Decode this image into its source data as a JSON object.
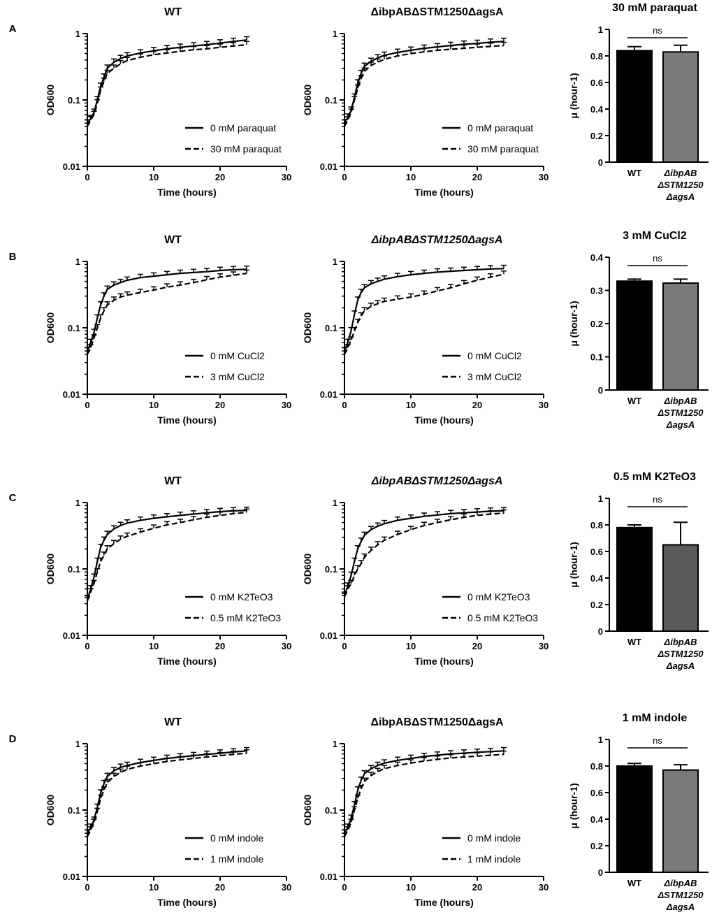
{
  "figure": {
    "panels": [
      {
        "letter": "A",
        "condition_label": "30 mM paraquat",
        "legend": [
          "0 mM paraquat",
          "30 mM paraquat"
        ],
        "bar_title": "30 mM paraquat"
      },
      {
        "letter": "B",
        "condition_label": "3 mM CuCl2",
        "legend": [
          "0 mM CuCl2",
          "3 mM CuCl2"
        ],
        "bar_title": "3 mM CuCl2"
      },
      {
        "letter": "C",
        "condition_label": "0.5 mM K2TeO3",
        "legend": [
          "0 mM K2TeO3",
          "0.5 mM K2TeO3"
        ],
        "bar_title": "0.5 mM K2TeO3"
      },
      {
        "letter": "D",
        "condition_label": "1 mM indole",
        "legend": [
          "0 mM indole",
          "1 mM indole"
        ],
        "bar_title": "1 mM indole"
      }
    ],
    "strain_titles_rows": [
      [
        "WT",
        "ΔibpABΔSTM1250ΔagsA"
      ],
      [
        "WT",
        "ΔibpABΔSTM1250ΔagsA"
      ],
      [
        "WT",
        "ΔibpABΔSTM1250ΔagsA"
      ],
      [
        "WT",
        "ΔibpABΔSTM1250ΔagsA"
      ]
    ],
    "growth_axis": {
      "xlabel": "Time (hours)",
      "ylabel": "OD600",
      "xticks": [
        "0",
        "10",
        "20",
        "30"
      ],
      "yticks": [
        "1",
        "0.1",
        "0.01"
      ]
    },
    "bar_axis": {
      "ylabel": "μ (hour-1)",
      "categories": [
        "WT",
        "ΔibpAB",
        "ΔSTM1250",
        "ΔagsA"
      ],
      "ns_label": "ns"
    }
  },
  "chart_data": [
    {
      "type": "line",
      "panel": "A",
      "title": "WT",
      "yscale": "log",
      "xlim": [
        0,
        30
      ],
      "ylim": [
        0.01,
        1
      ],
      "xlabel": "Time (hours)",
      "ylabel": "OD600",
      "series": [
        {
          "name": "0 mM paraquat",
          "style": "solid",
          "x": [
            0,
            0.5,
            1,
            1.5,
            2,
            2.5,
            3,
            4,
            5,
            6,
            8,
            10,
            12,
            14,
            16,
            18,
            20,
            22,
            24
          ],
          "y": [
            0.045,
            0.052,
            0.065,
            0.1,
            0.16,
            0.22,
            0.3,
            0.37,
            0.42,
            0.46,
            0.51,
            0.55,
            0.59,
            0.62,
            0.65,
            0.68,
            0.72,
            0.76,
            0.8
          ]
        },
        {
          "name": "30 mM paraquat",
          "style": "dashed",
          "x": [
            0,
            0.5,
            1,
            1.5,
            2,
            2.5,
            3,
            4,
            5,
            6,
            8,
            10,
            12,
            14,
            16,
            18,
            20,
            22,
            24
          ],
          "y": [
            0.04,
            0.05,
            0.06,
            0.09,
            0.14,
            0.19,
            0.25,
            0.3,
            0.35,
            0.39,
            0.44,
            0.48,
            0.51,
            0.54,
            0.57,
            0.59,
            0.62,
            0.65,
            0.68
          ]
        }
      ]
    },
    {
      "type": "line",
      "panel": "A",
      "title": "ΔibpABΔSTM1250ΔagsA",
      "yscale": "log",
      "xlim": [
        0,
        30
      ],
      "ylim": [
        0.01,
        1
      ],
      "xlabel": "Time (hours)",
      "ylabel": "OD600",
      "series": [
        {
          "name": "0 mM paraquat",
          "style": "solid",
          "x": [
            0,
            0.5,
            1,
            1.5,
            2,
            2.5,
            3,
            4,
            5,
            6,
            8,
            10,
            12,
            14,
            16,
            18,
            20,
            22,
            24
          ],
          "y": [
            0.045,
            0.055,
            0.07,
            0.11,
            0.18,
            0.25,
            0.32,
            0.38,
            0.43,
            0.47,
            0.52,
            0.56,
            0.6,
            0.63,
            0.66,
            0.69,
            0.71,
            0.74,
            0.76
          ]
        },
        {
          "name": "30 mM paraquat",
          "style": "dashed",
          "x": [
            0,
            0.5,
            1,
            1.5,
            2,
            2.5,
            3,
            4,
            5,
            6,
            8,
            10,
            12,
            14,
            16,
            18,
            20,
            22,
            24
          ],
          "y": [
            0.04,
            0.05,
            0.065,
            0.1,
            0.15,
            0.21,
            0.27,
            0.33,
            0.37,
            0.41,
            0.46,
            0.5,
            0.53,
            0.56,
            0.58,
            0.6,
            0.62,
            0.64,
            0.66
          ]
        }
      ]
    },
    {
      "type": "bar",
      "panel": "A",
      "title": "30 mM paraquat",
      "ylabel": "μ (hour-1)",
      "categories": [
        "WT",
        "ΔibpABΔSTM1250ΔagsA"
      ],
      "values": [
        0.84,
        0.83
      ],
      "errors": [
        0.03,
        0.05
      ],
      "fills": [
        "#000000",
        "#7a7a7a"
      ],
      "ylim": [
        0,
        1.0
      ],
      "yticks": [
        0,
        0.2,
        0.4,
        0.6,
        0.8,
        1.0
      ],
      "annotation": "ns"
    },
    {
      "type": "line",
      "panel": "B",
      "title": "WT",
      "yscale": "log",
      "xlim": [
        0,
        30
      ],
      "ylim": [
        0.01,
        1
      ],
      "xlabel": "Time (hours)",
      "ylabel": "OD600",
      "series": [
        {
          "name": "0 mM CuCl2",
          "style": "solid",
          "x": [
            0,
            0.5,
            1,
            1.5,
            2,
            2.5,
            3,
            4,
            5,
            6,
            8,
            10,
            12,
            14,
            16,
            18,
            20,
            22,
            24
          ],
          "y": [
            0.045,
            0.06,
            0.085,
            0.14,
            0.22,
            0.3,
            0.38,
            0.44,
            0.48,
            0.52,
            0.57,
            0.6,
            0.63,
            0.66,
            0.68,
            0.7,
            0.73,
            0.75,
            0.76
          ]
        },
        {
          "name": "3 mM CuCl2",
          "style": "dashed",
          "x": [
            0,
            0.5,
            1,
            1.5,
            2,
            2.5,
            3,
            4,
            5,
            6,
            8,
            10,
            12,
            14,
            16,
            18,
            20,
            22,
            24
          ],
          "y": [
            0.04,
            0.05,
            0.07,
            0.1,
            0.14,
            0.18,
            0.22,
            0.26,
            0.29,
            0.31,
            0.34,
            0.37,
            0.41,
            0.44,
            0.48,
            0.53,
            0.58,
            0.62,
            0.66
          ]
        }
      ]
    },
    {
      "type": "line",
      "panel": "B",
      "title": "ΔibpABΔSTM1250ΔagsA",
      "yscale": "log",
      "xlim": [
        0,
        30
      ],
      "ylim": [
        0.01,
        1
      ],
      "xlabel": "Time (hours)",
      "ylabel": "OD600",
      "series": [
        {
          "name": "0 mM CuCl2",
          "style": "solid",
          "x": [
            0,
            0.5,
            1,
            1.5,
            2,
            2.5,
            3,
            4,
            5,
            6,
            8,
            10,
            12,
            14,
            16,
            18,
            20,
            22,
            24
          ],
          "y": [
            0.045,
            0.06,
            0.09,
            0.16,
            0.26,
            0.34,
            0.4,
            0.46,
            0.5,
            0.54,
            0.59,
            0.63,
            0.66,
            0.69,
            0.71,
            0.73,
            0.75,
            0.77,
            0.78
          ]
        },
        {
          "name": "3 mM CuCl2",
          "style": "dashed",
          "x": [
            0,
            0.5,
            1,
            1.5,
            2,
            2.5,
            3,
            4,
            5,
            6,
            8,
            10,
            12,
            14,
            16,
            18,
            20,
            22,
            24
          ],
          "y": [
            0.04,
            0.05,
            0.065,
            0.09,
            0.12,
            0.15,
            0.18,
            0.21,
            0.23,
            0.25,
            0.27,
            0.29,
            0.32,
            0.36,
            0.4,
            0.46,
            0.52,
            0.58,
            0.64
          ]
        }
      ]
    },
    {
      "type": "bar",
      "panel": "B",
      "title": "3 mM CuCl2",
      "ylabel": "μ (hour-1)",
      "categories": [
        "WT",
        "ΔibpABΔSTM1250ΔagsA"
      ],
      "values": [
        0.328,
        0.322
      ],
      "errors": [
        0.006,
        0.012
      ],
      "fills": [
        "#000000",
        "#7a7a7a"
      ],
      "ylim": [
        0,
        0.4
      ],
      "yticks": [
        0,
        0.1,
        0.2,
        0.3,
        0.4
      ],
      "annotation": "ns"
    },
    {
      "type": "line",
      "panel": "C",
      "title": "WT",
      "yscale": "log",
      "xlim": [
        0,
        30
      ],
      "ylim": [
        0.01,
        1
      ],
      "xlabel": "Time (hours)",
      "ylabel": "OD600",
      "series": [
        {
          "name": "0 mM K2TeO3",
          "style": "solid",
          "x": [
            0,
            0.5,
            1,
            1.5,
            2,
            2.5,
            3,
            4,
            5,
            6,
            8,
            10,
            12,
            14,
            16,
            18,
            20,
            22,
            24
          ],
          "y": [
            0.035,
            0.05,
            0.075,
            0.13,
            0.21,
            0.27,
            0.33,
            0.4,
            0.45,
            0.49,
            0.54,
            0.58,
            0.61,
            0.64,
            0.67,
            0.7,
            0.73,
            0.75,
            0.76
          ]
        },
        {
          "name": "0.5 mM K2TeO3",
          "style": "dashed",
          "x": [
            0,
            0.5,
            1,
            1.5,
            2,
            2.5,
            3,
            4,
            5,
            6,
            8,
            10,
            12,
            14,
            16,
            18,
            20,
            22,
            24
          ],
          "y": [
            0.033,
            0.045,
            0.06,
            0.09,
            0.13,
            0.16,
            0.2,
            0.24,
            0.28,
            0.31,
            0.36,
            0.41,
            0.46,
            0.5,
            0.55,
            0.6,
            0.64,
            0.68,
            0.71
          ]
        }
      ]
    },
    {
      "type": "line",
      "panel": "C",
      "title": "ΔibpABΔSTM1250ΔagsA",
      "yscale": "log",
      "xlim": [
        0,
        30
      ],
      "ylim": [
        0.01,
        1
      ],
      "xlabel": "Time (hours)",
      "ylabel": "OD600",
      "series": [
        {
          "name": "0 mM K2TeO3",
          "style": "solid",
          "x": [
            0,
            0.5,
            1,
            1.5,
            2,
            2.5,
            3,
            4,
            5,
            6,
            8,
            10,
            12,
            14,
            16,
            18,
            20,
            22,
            24
          ],
          "y": [
            0.04,
            0.055,
            0.08,
            0.13,
            0.2,
            0.26,
            0.32,
            0.39,
            0.44,
            0.48,
            0.54,
            0.58,
            0.62,
            0.65,
            0.68,
            0.7,
            0.72,
            0.74,
            0.75
          ]
        },
        {
          "name": "0.5 mM K2TeO3",
          "style": "dashed",
          "x": [
            0,
            0.5,
            1,
            1.5,
            2,
            2.5,
            3,
            4,
            5,
            6,
            8,
            10,
            12,
            14,
            16,
            18,
            20,
            22,
            24
          ],
          "y": [
            0.038,
            0.05,
            0.06,
            0.08,
            0.1,
            0.12,
            0.15,
            0.19,
            0.23,
            0.27,
            0.33,
            0.39,
            0.45,
            0.5,
            0.55,
            0.6,
            0.64,
            0.67,
            0.69
          ]
        }
      ]
    },
    {
      "type": "bar",
      "panel": "C",
      "title": "0.5 mM K2TeO3",
      "ylabel": "μ (hour-1)",
      "categories": [
        "WT",
        "ΔibpABΔSTM1250ΔagsA"
      ],
      "values": [
        0.78,
        0.65
      ],
      "errors": [
        0.02,
        0.17
      ],
      "fills": [
        "#000000",
        "#5a5a5a"
      ],
      "ylim": [
        0,
        1.0
      ],
      "yticks": [
        0,
        0.2,
        0.4,
        0.6,
        0.8,
        1.0
      ],
      "annotation": "ns"
    },
    {
      "type": "line",
      "panel": "D",
      "title": "WT",
      "yscale": "log",
      "xlim": [
        0,
        30
      ],
      "ylim": [
        0.01,
        1
      ],
      "xlabel": "Time (hours)",
      "ylabel": "OD600",
      "series": [
        {
          "name": "0 mM indole",
          "style": "solid",
          "x": [
            0,
            0.5,
            1,
            1.5,
            2,
            2.5,
            3,
            4,
            5,
            6,
            8,
            10,
            12,
            14,
            16,
            18,
            20,
            22,
            24
          ],
          "y": [
            0.045,
            0.055,
            0.07,
            0.11,
            0.18,
            0.25,
            0.32,
            0.39,
            0.44,
            0.47,
            0.52,
            0.56,
            0.6,
            0.63,
            0.66,
            0.69,
            0.72,
            0.75,
            0.78
          ]
        },
        {
          "name": "1 mM indole",
          "style": "dashed",
          "x": [
            0,
            0.5,
            1,
            1.5,
            2,
            2.5,
            3,
            4,
            5,
            6,
            8,
            10,
            12,
            14,
            16,
            18,
            20,
            22,
            24
          ],
          "y": [
            0.04,
            0.05,
            0.065,
            0.095,
            0.15,
            0.2,
            0.26,
            0.32,
            0.37,
            0.41,
            0.46,
            0.5,
            0.54,
            0.57,
            0.6,
            0.63,
            0.66,
            0.69,
            0.72
          ]
        }
      ]
    },
    {
      "type": "line",
      "panel": "D",
      "title": "ΔibpABΔSTM1250ΔagsA",
      "yscale": "log",
      "xlim": [
        0,
        30
      ],
      "ylim": [
        0.01,
        1
      ],
      "xlabel": "Time (hours)",
      "ylabel": "OD600",
      "series": [
        {
          "name": "0 mM indole",
          "style": "solid",
          "x": [
            0,
            0.5,
            1,
            1.5,
            2,
            2.5,
            3,
            4,
            5,
            6,
            8,
            10,
            12,
            14,
            16,
            18,
            20,
            22,
            24
          ],
          "y": [
            0.045,
            0.055,
            0.075,
            0.12,
            0.2,
            0.28,
            0.35,
            0.42,
            0.47,
            0.51,
            0.56,
            0.6,
            0.64,
            0.67,
            0.7,
            0.72,
            0.74,
            0.76,
            0.78
          ]
        },
        {
          "name": "1 mM indole",
          "style": "dashed",
          "x": [
            0,
            0.5,
            1,
            1.5,
            2,
            2.5,
            3,
            4,
            5,
            6,
            8,
            10,
            12,
            14,
            16,
            18,
            20,
            22,
            24
          ],
          "y": [
            0.04,
            0.05,
            0.065,
            0.1,
            0.15,
            0.21,
            0.27,
            0.33,
            0.38,
            0.42,
            0.47,
            0.51,
            0.55,
            0.58,
            0.61,
            0.63,
            0.65,
            0.67,
            0.69
          ]
        }
      ]
    },
    {
      "type": "bar",
      "panel": "D",
      "title": "1 mM indole",
      "ylabel": "μ (hour-1)",
      "categories": [
        "WT",
        "ΔibpABΔSTM1250ΔagsA"
      ],
      "values": [
        0.8,
        0.77
      ],
      "errors": [
        0.02,
        0.04
      ],
      "fills": [
        "#000000",
        "#7a7a7a"
      ],
      "ylim": [
        0,
        1.0
      ],
      "yticks": [
        0,
        0.2,
        0.4,
        0.6,
        0.8,
        1.0
      ],
      "annotation": "ns"
    }
  ]
}
